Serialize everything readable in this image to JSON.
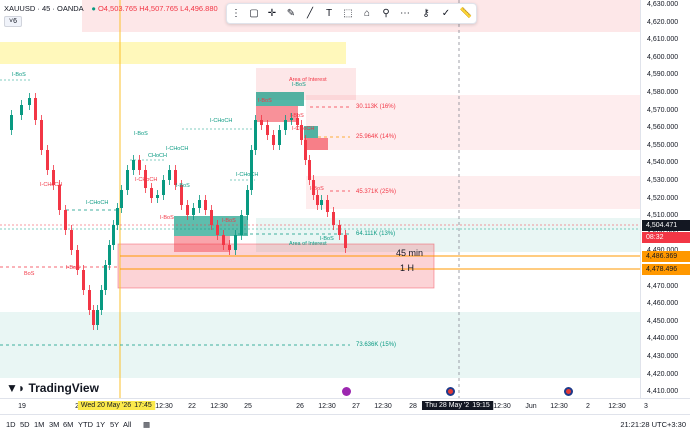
{
  "symbol": {
    "name": "XAUUSD",
    "timeframe": "45",
    "broker": "OANDA",
    "o": "O4,503.765",
    "h": "H4,507.765",
    "l": "L4,496.880",
    "collapse_label": "6"
  },
  "price_axis": {
    "ticks": [
      "4,630.000",
      "4,620.000",
      "4,610.000",
      "4,600.000",
      "4,590.000",
      "4,580.000",
      "4,570.000",
      "4,560.000",
      "4,550.000",
      "4,540.000",
      "4,530.000",
      "4,520.000",
      "4,510.000",
      "4,500.000",
      "4,490.000",
      "4,480.000",
      "4,470.000",
      "4,460.000",
      "4,450.000",
      "4,440.000",
      "4,430.000",
      "4,420.000",
      "4,410.000"
    ],
    "last_price": "4,504.471",
    "countdown": "08:32",
    "level_45min": "4,486.369",
    "level_1h": "4,478.496",
    "colors": {
      "bull": "#089981",
      "bear": "#f23645",
      "orange": "#ff9800",
      "dark": "#131722"
    }
  },
  "time_axis": {
    "labels": [
      "19",
      "20",
      "Wed 20 May '26",
      "17:45",
      "12:30",
      "22",
      "12:30",
      "25",
      "26",
      "12:30",
      "27",
      "12:30",
      "28",
      "Thu 28 May '26",
      "19:15",
      "12:30",
      "Jun",
      "12:30",
      "2",
      "12:30",
      "3"
    ],
    "crosshair_date": "Wed 20 May '26",
    "crosshair_time": "17:45",
    "cursor_date": "Thu 28 May '26",
    "cursor_time": "19:15"
  },
  "annotations": {
    "area_of_interest": "Area of Interest",
    "area_of_interest_lower": "Area of Interest",
    "liq_30": "30.113K (16%)",
    "liq_25": "25.964K (14%)",
    "liq_45": "45.371K (25%)",
    "liq_64": "64.111K (13%)",
    "liq_73": "73.636K (15%)",
    "label_45min": "45 min",
    "label_1h": "1 H",
    "structure": [
      "I-BoS",
      "I-BoS",
      "I-CHoCH",
      "I-CHoCH",
      "I-CHoCH",
      "I-BoS",
      "I-CHoCH",
      "I-BoS",
      "I-CHoCH",
      "I-BoS",
      "I-BoS",
      "I-BoS",
      "BoS",
      "I-BoS",
      "I-CHoCH",
      "I-CHoCH",
      "I-BoS",
      "I-BoS",
      "CHoCH",
      "I-BoS"
    ]
  },
  "toolbar": {
    "icons": [
      "drag-handle-icon",
      "cursor-icon",
      "crosshair-icon",
      "pencil-icon",
      "trend-line-icon",
      "text-icon",
      "rectangle-icon",
      "path-icon",
      "brush-icon",
      "more-icon",
      "lock-icon",
      "visibility-icon",
      "ruler-icon"
    ]
  },
  "logo_text": "TradingView",
  "bottom_bar": {
    "ranges": [
      "1D",
      "5D",
      "1M",
      "3M",
      "6M",
      "YTD",
      "1Y",
      "5Y",
      "All"
    ],
    "clock": "21:21:28 UTC+3:30"
  }
}
